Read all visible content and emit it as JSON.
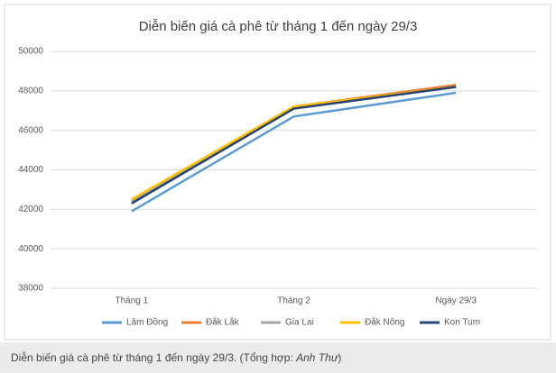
{
  "chart_data": {
    "type": "line",
    "title": "Diễn biến giá cà phê từ tháng 1 đến ngày 29/3",
    "categories": [
      "Tháng 1",
      "Tháng 2",
      "Ngày 29/3"
    ],
    "series": [
      {
        "name": "Lâm Đồng",
        "color": "#5b9bd5",
        "values": [
          41900,
          46700,
          47900
        ]
      },
      {
        "name": "Đắk Lắk",
        "color": "#ed7d31",
        "values": [
          42400,
          47200,
          48300
        ]
      },
      {
        "name": "Gia Lai",
        "color": "#a5a5a5",
        "values": [
          42400,
          47100,
          48200
        ]
      },
      {
        "name": "Đắk Nông",
        "color": "#ffc000",
        "values": [
          42500,
          47200,
          48200
        ]
      },
      {
        "name": "Kon Tum",
        "color": "#264478",
        "values": [
          42300,
          47100,
          48200
        ]
      }
    ],
    "ylim": [
      38000,
      50000
    ],
    "yticks": [
      38000,
      40000,
      42000,
      44000,
      46000,
      48000,
      50000
    ],
    "grid": true,
    "legend": "bottom"
  },
  "caption": {
    "text": "Diễn biến giá cà phê từ tháng 1 đến ngày 29/3. (Tổng hợp: ",
    "author": "Anh Thư",
    "close": ")"
  }
}
